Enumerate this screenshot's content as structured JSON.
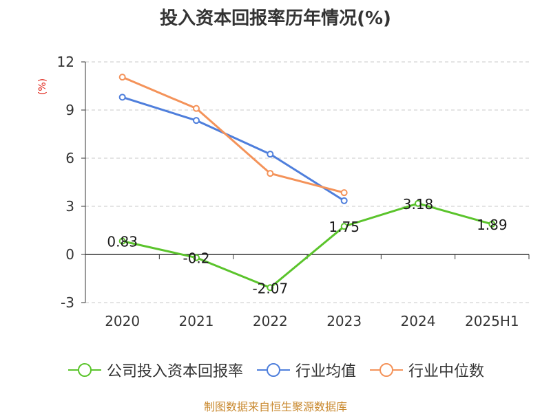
{
  "chart_data": {
    "type": "line",
    "title": "投入资本回报率历年情况(%)",
    "unit_label": "(%)",
    "categories": [
      "2020",
      "2021",
      "2022",
      "2023",
      "2024",
      "2025H1"
    ],
    "ylim": [
      -3,
      12
    ],
    "yticks": [
      -3,
      0,
      3,
      6,
      9,
      12
    ],
    "grid": true,
    "legend_position": "bottom",
    "series": [
      {
        "name": "公司投入资本回报率",
        "color": "#5bc42c",
        "values": [
          0.83,
          -0.2,
          -2.07,
          1.75,
          3.18,
          1.89
        ],
        "labels": [
          "0.83",
          "-0.2",
          "-2.07",
          "1.75",
          "3.18",
          "1.89"
        ]
      },
      {
        "name": "行业均值",
        "color": "#4f7fdc",
        "values": [
          9.8,
          8.35,
          6.25,
          3.35,
          null,
          null
        ]
      },
      {
        "name": "行业中位数",
        "color": "#f4935a",
        "values": [
          11.05,
          9.1,
          5.05,
          3.85,
          null,
          null
        ]
      }
    ]
  },
  "source": "制图数据来自恒生聚源数据库"
}
